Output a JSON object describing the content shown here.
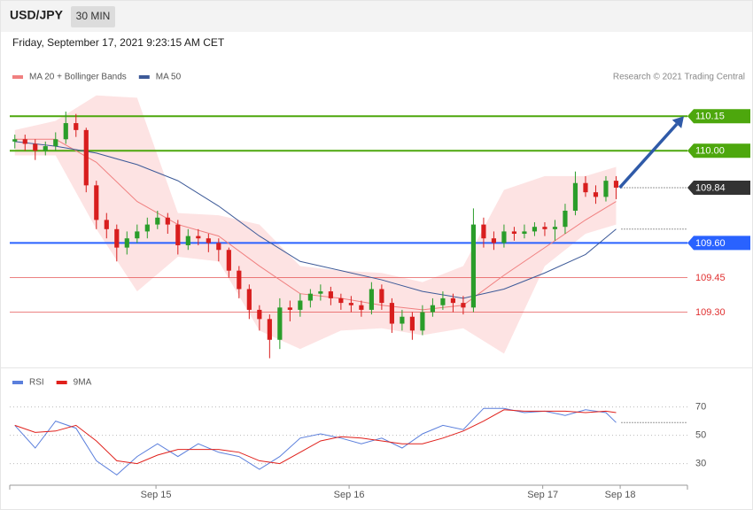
{
  "header": {
    "symbol": "USD/JPY",
    "timeframe": "30 MIN",
    "timestamp": "Friday, September 17, 2021 9:23:15 AM CET"
  },
  "chart_data": [
    {
      "type": "candlestick",
      "source": "Research © 2021 Trading Central",
      "xlim": [
        -0.5,
        66
      ],
      "ylim": [
        109.06,
        110.27
      ],
      "up_color": "#2a9d2a",
      "down_color": "#d81e1e",
      "open": [
        110.04,
        110.05,
        110.03,
        110.0,
        110.02,
        110.05,
        110.12,
        110.09,
        109.85,
        109.7,
        109.66,
        109.58,
        109.62,
        109.65,
        109.68,
        109.71,
        109.68,
        109.59,
        109.63,
        109.62,
        109.6,
        109.57,
        109.48,
        109.4,
        109.31,
        109.27,
        109.18,
        109.32,
        109.31,
        109.35,
        109.38,
        109.39,
        109.36,
        109.34,
        109.33,
        109.31,
        109.4,
        109.34,
        109.25,
        109.28,
        109.22,
        109.3,
        109.33,
        109.36,
        109.34,
        109.32,
        109.68,
        109.62,
        109.6,
        109.65,
        109.64,
        109.65,
        109.67,
        109.66,
        109.67,
        109.74,
        109.86,
        109.82,
        109.8,
        109.87
      ],
      "high": [
        110.07,
        110.07,
        110.05,
        110.04,
        110.08,
        110.17,
        110.16,
        110.1,
        109.87,
        109.73,
        109.68,
        109.65,
        109.68,
        109.71,
        109.74,
        109.73,
        109.7,
        109.66,
        109.66,
        109.64,
        109.62,
        109.58,
        109.5,
        109.42,
        109.33,
        109.29,
        109.36,
        109.35,
        109.38,
        109.4,
        109.42,
        109.41,
        109.38,
        109.37,
        109.35,
        109.43,
        109.42,
        109.36,
        109.31,
        109.3,
        109.33,
        109.36,
        109.39,
        109.38,
        109.37,
        109.75,
        109.71,
        109.65,
        109.68,
        109.67,
        109.68,
        109.69,
        109.69,
        109.7,
        109.77,
        109.91,
        109.89,
        109.85,
        109.89,
        109.89
      ],
      "low": [
        110.01,
        110.0,
        109.96,
        109.98,
        110.0,
        110.03,
        110.06,
        109.82,
        109.66,
        109.62,
        109.52,
        109.55,
        109.6,
        109.62,
        109.66,
        109.64,
        109.55,
        109.57,
        109.59,
        109.56,
        109.52,
        109.45,
        109.36,
        109.27,
        109.22,
        109.1,
        109.14,
        109.26,
        109.28,
        109.32,
        109.35,
        109.33,
        109.31,
        109.3,
        109.28,
        109.29,
        109.31,
        109.21,
        109.22,
        109.18,
        109.2,
        109.28,
        109.31,
        109.3,
        109.29,
        109.3,
        109.58,
        109.57,
        109.58,
        109.61,
        109.62,
        109.63,
        109.63,
        109.61,
        109.64,
        109.72,
        109.8,
        109.77,
        109.78,
        109.79
      ],
      "close": [
        110.05,
        110.03,
        110.0,
        110.02,
        110.05,
        110.12,
        110.09,
        109.85,
        109.7,
        109.66,
        109.58,
        109.62,
        109.65,
        109.68,
        109.71,
        109.68,
        109.59,
        109.63,
        109.62,
        109.6,
        109.57,
        109.48,
        109.4,
        109.31,
        109.27,
        109.18,
        109.32,
        109.31,
        109.35,
        109.38,
        109.39,
        109.36,
        109.34,
        109.33,
        109.31,
        109.4,
        109.34,
        109.25,
        109.28,
        109.22,
        109.3,
        109.33,
        109.36,
        109.34,
        109.32,
        109.68,
        109.62,
        109.6,
        109.65,
        109.64,
        109.65,
        109.67,
        109.66,
        109.67,
        109.74,
        109.86,
        109.82,
        109.8,
        109.87,
        109.84
      ],
      "overlays": [
        {
          "name": "MA 20 + Bollinger Bands",
          "color": "#f08080",
          "band_color": "#fde3e3",
          "x": [
            0,
            4,
            8,
            12,
            16,
            20,
            24,
            28,
            32,
            36,
            40,
            44,
            48,
            52,
            56,
            59
          ],
          "values": [
            110.05,
            110.05,
            109.95,
            109.78,
            109.68,
            109.63,
            109.5,
            109.38,
            109.36,
            109.33,
            109.31,
            109.33,
            109.46,
            109.58,
            109.7,
            109.78
          ],
          "upper": [
            110.09,
            110.13,
            110.24,
            110.23,
            109.73,
            109.72,
            109.68,
            109.5,
            109.48,
            109.47,
            109.43,
            109.5,
            109.83,
            109.89,
            109.89,
            109.93
          ],
          "lower": [
            109.98,
            109.98,
            109.66,
            109.39,
            109.54,
            109.52,
            109.22,
            109.14,
            109.22,
            109.23,
            109.2,
            109.23,
            109.12,
            109.5,
            109.64,
            109.68
          ]
        },
        {
          "name": "MA 50",
          "color": "#3d5a98",
          "x": [
            0,
            4,
            8,
            12,
            16,
            20,
            24,
            28,
            32,
            36,
            40,
            44,
            48,
            52,
            56,
            59
          ],
          "values": [
            110.04,
            110.02,
            109.99,
            109.94,
            109.87,
            109.76,
            109.63,
            109.52,
            109.48,
            109.44,
            109.39,
            109.36,
            109.4,
            109.47,
            109.55,
            109.66
          ]
        }
      ],
      "levels": [
        {
          "value": 110.15,
          "color": "#4da70d",
          "label_box": true,
          "line": "solid"
        },
        {
          "value": 110,
          "label": "110.00",
          "color": "#4da70d",
          "label_box": true,
          "line": "solid"
        },
        {
          "value": 109.84,
          "color": "#333333",
          "label_box": true,
          "line": "dotted"
        },
        {
          "value": 109.6,
          "label": "109.60",
          "color": "#2962ff",
          "label_box": true,
          "line": "solid"
        },
        {
          "value": 109.45,
          "color": "#e03030",
          "label_box": false,
          "line": "solid"
        },
        {
          "value": 109.3,
          "label": "109.30",
          "color": "#e03030",
          "label_box": false,
          "line": "solid"
        }
      ]
    },
    {
      "type": "line",
      "xlim": [
        -0.5,
        66
      ],
      "ylim": [
        16,
        94.75
      ],
      "yticks": [
        30,
        50,
        70
      ],
      "grid": true,
      "xticks": [
        {
          "value": 13.85,
          "label": "Sep 15"
        },
        {
          "value": 32.8,
          "label": "Sep 16"
        },
        {
          "value": 51.8,
          "label": "Sep 17"
        },
        {
          "value": 59.4,
          "label": "Sep 18"
        }
      ],
      "x": [
        0,
        2,
        4,
        6,
        8,
        10,
        12,
        14,
        16,
        18,
        20,
        22,
        24,
        26,
        28,
        30,
        32,
        34,
        36,
        38,
        40,
        42,
        44,
        46,
        48,
        50,
        52,
        54,
        56,
        58,
        59
      ],
      "series": [
        {
          "name": "RSI",
          "color": "#5b7fdc",
          "values": [
            57,
            41,
            60,
            55,
            32,
            22,
            35,
            44,
            35,
            44,
            38,
            35,
            26,
            35,
            48,
            51,
            48,
            44,
            48,
            41,
            51,
            57,
            54,
            69,
            69,
            66,
            67,
            64,
            68,
            66,
            59
          ]
        },
        {
          "name": "9MA",
          "color": "#e0201b",
          "values": [
            57,
            52,
            53,
            57,
            46,
            32,
            30,
            36,
            40,
            40,
            40,
            38,
            32,
            30,
            38,
            46,
            49,
            48,
            46,
            44,
            44,
            48,
            53,
            60,
            68,
            67,
            67,
            67,
            66,
            67,
            66
          ]
        }
      ]
    }
  ]
}
